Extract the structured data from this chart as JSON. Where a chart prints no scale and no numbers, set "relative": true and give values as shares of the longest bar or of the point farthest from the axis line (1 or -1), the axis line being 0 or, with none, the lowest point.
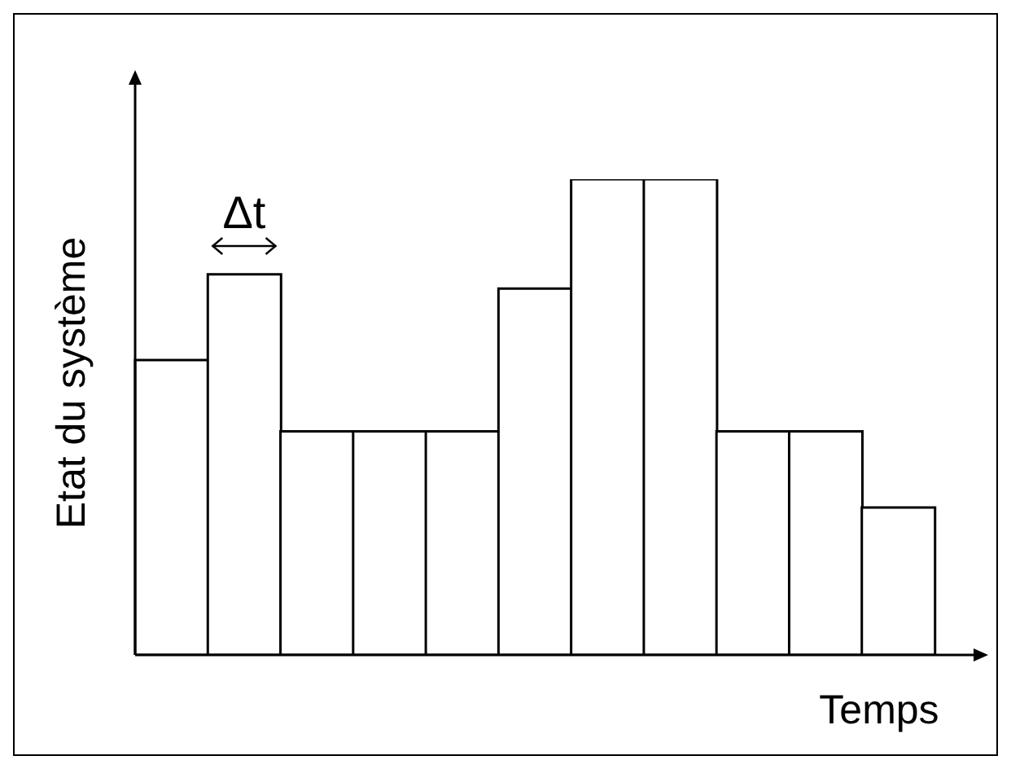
{
  "chart_data": {
    "type": "bar",
    "relative": true,
    "xlabel": "Temps",
    "ylabel": "Etat du système",
    "categories": [
      null,
      null,
      null,
      null,
      null,
      null,
      null,
      null,
      null,
      null,
      null
    ],
    "values": [
      0.62,
      0.8,
      0.47,
      0.47,
      0.47,
      0.77,
      1,
      1,
      0.47,
      0.47,
      0.31
    ],
    "color": "#ffffff",
    "tick_labels": false,
    "annotations": [
      "Δt"
    ]
  }
}
